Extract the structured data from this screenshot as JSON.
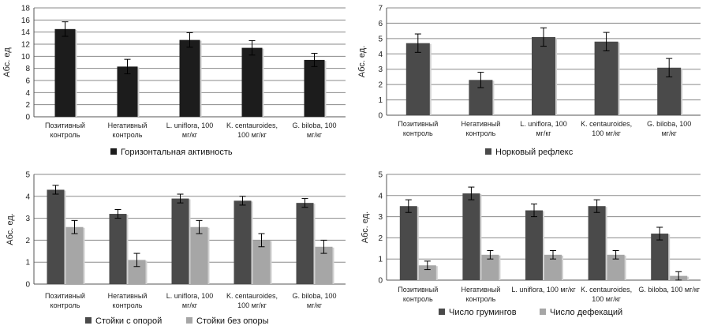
{
  "chart_data": [
    {
      "type": "bar",
      "ylabel": "Абс. ед",
      "ylim": [
        0,
        18
      ],
      "yticks": [
        0,
        2,
        4,
        6,
        8,
        10,
        12,
        14,
        16,
        18
      ],
      "grid": true,
      "legend_position": "bottom",
      "categories": [
        [
          "Позитивный",
          "контроль"
        ],
        [
          "Негативный",
          "контроль"
        ],
        [
          "L. uniflora, 100",
          "мг/кг"
        ],
        [
          "K. centauroides,",
          "100 мг/кг"
        ],
        [
          "G. biloba, 100",
          "мг/кг"
        ]
      ],
      "series": [
        {
          "name": "Горизонтальная активность",
          "color": "#1c1c1c",
          "values": [
            14.5,
            8.3,
            12.7,
            11.4,
            9.4
          ],
          "errors": [
            1.2,
            1.2,
            1.2,
            1.2,
            1.1
          ]
        }
      ]
    },
    {
      "type": "bar",
      "ylabel": "Абс. ед.",
      "ylim": [
        0,
        7
      ],
      "yticks": [
        0,
        1,
        2,
        3,
        4,
        5,
        6,
        7
      ],
      "grid": true,
      "legend_position": "bottom",
      "categories": [
        [
          "Позитивный",
          "контроль"
        ],
        [
          "Негативный",
          "контроль"
        ],
        [
          "L. uniflora, 100",
          "мг/кг"
        ],
        [
          "K. centauroides,",
          "100 мг/кг"
        ],
        [
          "G. biloba, 100",
          "мг/кг"
        ]
      ],
      "series": [
        {
          "name": "Норковый рефлекс",
          "color": "#4a4a4a",
          "values": [
            4.7,
            2.3,
            5.1,
            4.8,
            3.1
          ],
          "errors": [
            0.6,
            0.5,
            0.6,
            0.6,
            0.6
          ]
        }
      ]
    },
    {
      "type": "bar",
      "ylabel": "Абс. ед.",
      "ylim": [
        0,
        5
      ],
      "yticks": [
        0,
        1,
        2,
        3,
        4,
        5
      ],
      "grid": true,
      "legend_position": "bottom",
      "categories": [
        [
          "Позитивный",
          "контроль"
        ],
        [
          "Негативный",
          "контроль"
        ],
        [
          "L. uniflora, 100",
          "мг/кг"
        ],
        [
          "K. centauroides,",
          "100 мг/кг"
        ],
        [
          "G. biloba, 100",
          "мг/кг"
        ]
      ],
      "series": [
        {
          "name": "Стойки с опорой",
          "color": "#4a4a4a",
          "values": [
            4.3,
            3.2,
            3.9,
            3.8,
            3.7
          ],
          "errors": [
            0.2,
            0.2,
            0.2,
            0.2,
            0.2
          ]
        },
        {
          "name": "Стойки без опоры",
          "color": "#a6a6a6",
          "values": [
            2.6,
            1.1,
            2.6,
            2.0,
            1.7
          ],
          "errors": [
            0.3,
            0.3,
            0.3,
            0.3,
            0.3
          ]
        }
      ]
    },
    {
      "type": "bar",
      "ylabel": "Абс. ед.",
      "ylim": [
        0,
        5
      ],
      "yticks": [
        0,
        1,
        2,
        3,
        4,
        5
      ],
      "grid": true,
      "legend_position": "bottom",
      "categories": [
        [
          "Позитивный",
          "контроль"
        ],
        [
          "Негативный",
          "контроль"
        ],
        [
          "L. uniflora, 100 мг/кг",
          ""
        ],
        [
          "K. centauroides,",
          "100 мг/кг"
        ],
        [
          "G. biloba, 100 мг/кг",
          ""
        ]
      ],
      "series": [
        {
          "name": "Число грумингов",
          "color": "#4a4a4a",
          "values": [
            3.5,
            4.1,
            3.3,
            3.5,
            2.2
          ],
          "errors": [
            0.3,
            0.3,
            0.3,
            0.3,
            0.3
          ]
        },
        {
          "name": "Число дефекаций",
          "color": "#a6a6a6",
          "values": [
            0.7,
            1.2,
            1.2,
            1.2,
            0.2
          ],
          "errors": [
            0.2,
            0.2,
            0.2,
            0.2,
            0.2
          ]
        }
      ]
    }
  ]
}
